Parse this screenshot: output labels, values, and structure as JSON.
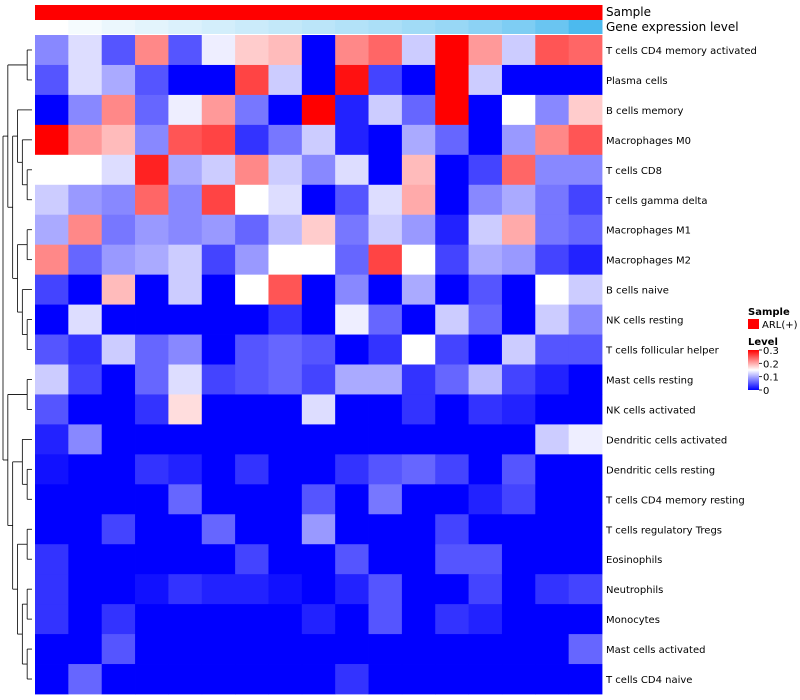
{
  "chart_data": {
    "type": "heatmap",
    "title": "",
    "annotation_tracks": [
      {
        "name": "Sample",
        "label": "Sample"
      },
      {
        "name": "Gene expression level",
        "label": "Gene expression level"
      }
    ],
    "rows": [
      "T cells CD4 memory activated",
      "Plasma cells",
      "B cells memory",
      "Macrophages M0",
      "T cells CD8",
      "T cells gamma delta",
      "Macrophages M1",
      "Macrophages M2",
      "B cells naive",
      "NK cells resting",
      "T cells follicular helper",
      "Mast cells resting",
      "NK cells activated",
      "Dendritic cells activated",
      "Dendritic cells resting",
      "T cells CD4 memory resting",
      "T cells regulatory  Tregs",
      "Eosinophils",
      "Neutrophils",
      "Monocytes",
      "Mast cells activated",
      "T cells CD4 naive"
    ],
    "columns": 17,
    "expression_levels": [
      0.0,
      0.05,
      0.1,
      0.14,
      0.18,
      0.22,
      0.26,
      0.3,
      0.34,
      0.38,
      0.42,
      0.47,
      0.52,
      0.58,
      0.65,
      0.75,
      0.9
    ],
    "values": [
      [
        0.08,
        0.13,
        0.05,
        0.22,
        0.05,
        0.14,
        0.18,
        0.19,
        0.0,
        0.22,
        0.24,
        0.12,
        0.3,
        0.21,
        0.12,
        0.25,
        0.24
      ],
      [
        0.05,
        0.13,
        0.1,
        0.05,
        0.0,
        0.0,
        0.26,
        0.12,
        0.0,
        0.29,
        0.04,
        0.0,
        0.3,
        0.12,
        0.0,
        0.0,
        0.0
      ],
      [
        0.0,
        0.08,
        0.22,
        0.06,
        0.14,
        0.21,
        0.07,
        0.0,
        0.3,
        0.02,
        0.12,
        0.06,
        0.3,
        0.0,
        0.15,
        0.08,
        0.18
      ],
      [
        0.3,
        0.21,
        0.19,
        0.08,
        0.25,
        0.26,
        0.03,
        0.07,
        0.12,
        0.02,
        0.0,
        0.1,
        0.06,
        0.0,
        0.09,
        0.22,
        0.25
      ],
      [
        0.15,
        0.15,
        0.13,
        0.28,
        0.1,
        0.12,
        0.22,
        0.12,
        0.08,
        0.13,
        0.0,
        0.19,
        0.0,
        0.04,
        0.24,
        0.08,
        0.08
      ],
      [
        0.12,
        0.09,
        0.08,
        0.24,
        0.08,
        0.26,
        0.15,
        0.13,
        0.0,
        0.05,
        0.13,
        0.2,
        0.0,
        0.08,
        0.1,
        0.07,
        0.04
      ],
      [
        0.1,
        0.22,
        0.07,
        0.09,
        0.08,
        0.09,
        0.06,
        0.11,
        0.18,
        0.07,
        0.12,
        0.09,
        0.02,
        0.12,
        0.2,
        0.07,
        0.06
      ],
      [
        0.22,
        0.06,
        0.09,
        0.1,
        0.12,
        0.04,
        0.09,
        0.15,
        0.15,
        0.06,
        0.26,
        0.15,
        0.04,
        0.1,
        0.09,
        0.04,
        0.02
      ],
      [
        0.04,
        0.0,
        0.19,
        0.0,
        0.12,
        0.0,
        0.15,
        0.25,
        0.0,
        0.08,
        0.0,
        0.1,
        0.0,
        0.05,
        0.0,
        0.15,
        0.12
      ],
      [
        0.0,
        0.13,
        0.0,
        0.0,
        0.0,
        0.0,
        0.0,
        0.03,
        0.0,
        0.14,
        0.06,
        0.0,
        0.12,
        0.06,
        0.0,
        0.12,
        0.08
      ],
      [
        0.05,
        0.03,
        0.12,
        0.06,
        0.08,
        0.0,
        0.05,
        0.06,
        0.05,
        0.0,
        0.03,
        0.15,
        0.04,
        0.0,
        0.12,
        0.05,
        0.05
      ],
      [
        0.12,
        0.04,
        0.0,
        0.06,
        0.13,
        0.04,
        0.05,
        0.06,
        0.04,
        0.1,
        0.1,
        0.03,
        0.06,
        0.11,
        0.04,
        0.02,
        0.0
      ],
      [
        0.05,
        0.0,
        0.0,
        0.03,
        0.17,
        0.0,
        0.0,
        0.0,
        0.13,
        0.0,
        0.0,
        0.03,
        0.0,
        0.03,
        0.02,
        0.0,
        0.0
      ],
      [
        0.02,
        0.08,
        0.0,
        0.0,
        0.0,
        0.0,
        0.0,
        0.0,
        0.0,
        0.0,
        0.0,
        0.0,
        0.0,
        0.0,
        0.0,
        0.12,
        0.14
      ],
      [
        0.01,
        0.0,
        0.0,
        0.03,
        0.02,
        0.0,
        0.03,
        0.0,
        0.0,
        0.03,
        0.05,
        0.06,
        0.04,
        0.0,
        0.05,
        0.0,
        0.0
      ],
      [
        0.0,
        0.0,
        0.0,
        0.0,
        0.06,
        0.0,
        0.0,
        0.0,
        0.05,
        0.0,
        0.07,
        0.0,
        0.0,
        0.02,
        0.04,
        0.0,
        0.0
      ],
      [
        0.0,
        0.0,
        0.04,
        0.0,
        0.0,
        0.06,
        0.0,
        0.0,
        0.09,
        0.0,
        0.0,
        0.0,
        0.04,
        0.0,
        0.0,
        0.0,
        0.0
      ],
      [
        0.03,
        0.0,
        0.0,
        0.0,
        0.0,
        0.0,
        0.04,
        0.0,
        0.0,
        0.05,
        0.0,
        0.0,
        0.05,
        0.05,
        0.0,
        0.0,
        0.0
      ],
      [
        0.03,
        0.0,
        0.0,
        0.01,
        0.03,
        0.02,
        0.02,
        0.01,
        0.0,
        0.02,
        0.05,
        0.0,
        0.0,
        0.04,
        0.0,
        0.03,
        0.04
      ],
      [
        0.03,
        0.0,
        0.03,
        0.0,
        0.0,
        0.0,
        0.0,
        0.0,
        0.02,
        0.0,
        0.05,
        0.0,
        0.03,
        0.02,
        0.0,
        0.0,
        0.0
      ],
      [
        0.0,
        0.0,
        0.05,
        0.0,
        0.0,
        0.0,
        0.0,
        0.0,
        0.0,
        0.0,
        0.0,
        0.0,
        0.0,
        0.0,
        0.0,
        0.0,
        0.06
      ],
      [
        0.0,
        0.06,
        0.0,
        0.0,
        0.0,
        0.0,
        0.0,
        0.0,
        0.0,
        0.03,
        0.0,
        0.0,
        0.0,
        0.0,
        0.0,
        0.0,
        0.0
      ]
    ],
    "color_scale": {
      "min": 0,
      "mid": 0.15,
      "max": 0.3,
      "low": "#0000ff",
      "mid_color": "#ffffff",
      "high": "#ff0000"
    },
    "legend": {
      "sample_title": "Sample",
      "sample_entry": "ARL(+)",
      "sample_color": "#ff0000",
      "level_title": "Level",
      "level_ticks": [
        "0.3",
        "0.2",
        "0.1",
        "0"
      ],
      "level_tick_values": [
        0.3,
        0.2,
        0.1,
        0
      ]
    },
    "dendrogram": "row"
  }
}
